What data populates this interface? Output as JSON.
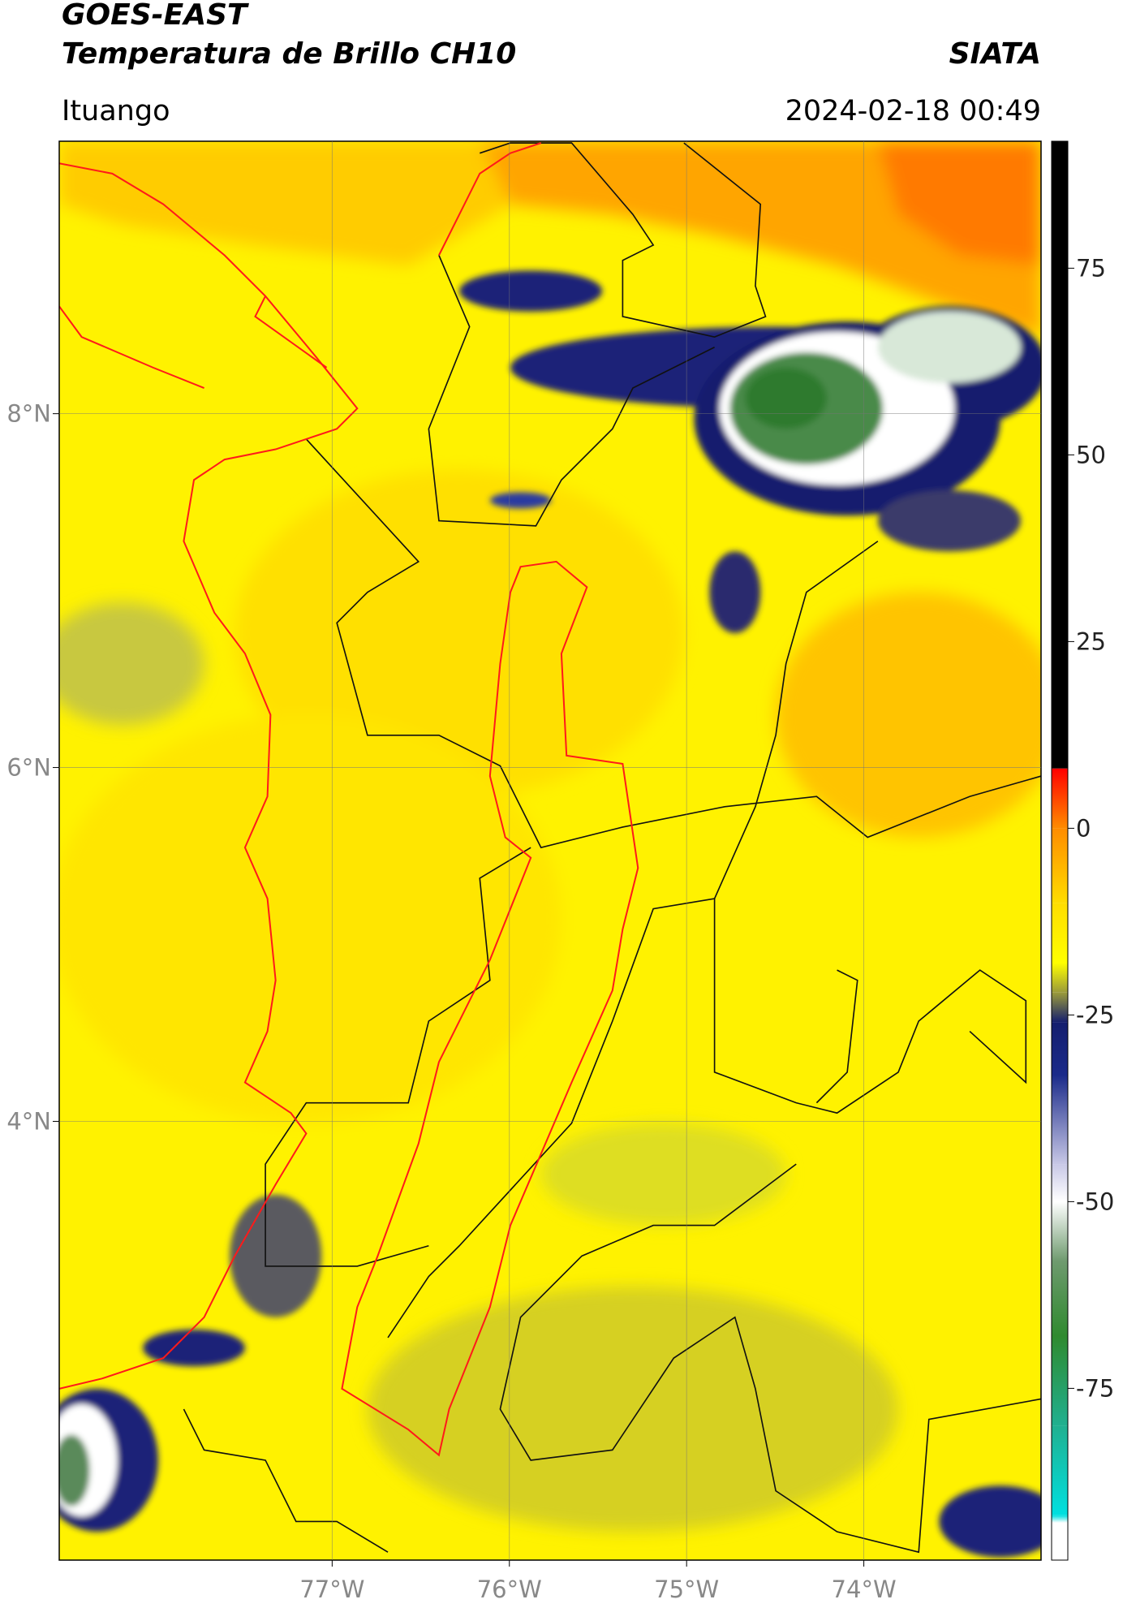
{
  "chart_data": {
    "type": "raster-map",
    "title": "GOES-EAST",
    "subtitle": "Temperatura de Brillo CH10",
    "source": "SIATA",
    "location": "Ituango",
    "timestamp": "2024-02-18 00:49",
    "xlim": [
      -78.54,
      -73.0
    ],
    "ylim": [
      1.52,
      9.54
    ],
    "xticks": [
      {
        "value": -77,
        "label": "77°W"
      },
      {
        "value": -76,
        "label": "76°W"
      },
      {
        "value": -75,
        "label": "75°W"
      },
      {
        "value": -74,
        "label": "74°W"
      }
    ],
    "yticks": [
      {
        "value": 8,
        "label": "8°N"
      },
      {
        "value": 6,
        "label": "6°N"
      },
      {
        "value": 4,
        "label": "4°N"
      }
    ],
    "grid": true,
    "clim": [
      -98,
      92
    ],
    "cticks": [
      75,
      50,
      25,
      0,
      -25,
      -50,
      -75
    ],
    "colormap": [
      {
        "value": 92,
        "color": "#000000"
      },
      {
        "value": 8,
        "color": "#000000"
      },
      {
        "value": 8,
        "color": "#ff0000"
      },
      {
        "value": 0,
        "color": "#ff8c00"
      },
      {
        "value": -10,
        "color": "#ffdd00"
      },
      {
        "value": -18,
        "color": "#ffff00"
      },
      {
        "value": -22,
        "color": "#9a9a3a"
      },
      {
        "value": -26,
        "color": "#141e6e"
      },
      {
        "value": -33,
        "color": "#1a2a8a"
      },
      {
        "value": -45,
        "color": "#c8c8e6"
      },
      {
        "value": -50,
        "color": "#ffffff"
      },
      {
        "value": -58,
        "color": "#6e9a6e"
      },
      {
        "value": -68,
        "color": "#2f8a2f"
      },
      {
        "value": -80,
        "color": "#20b090"
      },
      {
        "value": -92,
        "color": "#00e0e0"
      },
      {
        "value": -93,
        "color": "#ffffff"
      },
      {
        "value": -98,
        "color": "#ffffff"
      }
    ]
  }
}
